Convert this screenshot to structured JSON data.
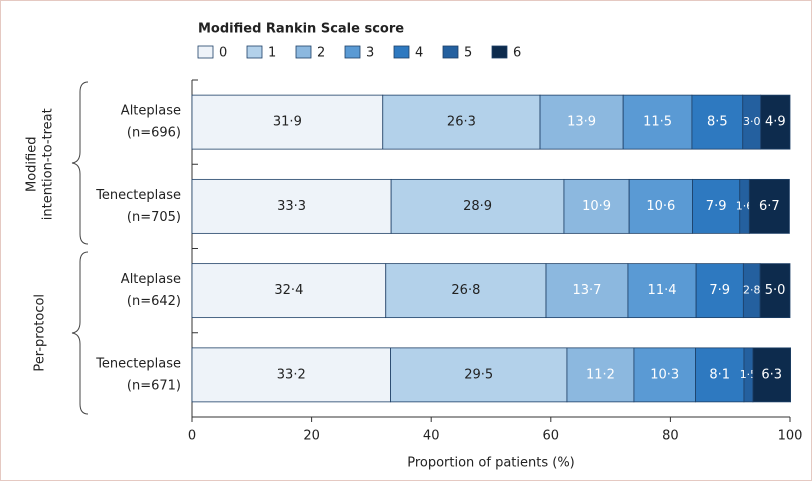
{
  "chart_data": {
    "type": "stacked-bar-horizontal",
    "legend_title": "Modified Rankin Scale score",
    "categories": [
      [
        "Alteplase",
        "(n=696)"
      ],
      [
        "Tenecteplase",
        "(n=705)"
      ],
      [
        "Alteplase",
        "(n=642)"
      ],
      [
        "Tenecteplase",
        "(n=671)"
      ]
    ],
    "groups": [
      [
        "Modified",
        "intention-to-treat"
      ],
      [
        "Per-protocol"
      ]
    ],
    "series": [
      {
        "name": "0",
        "color": "#eef3f9",
        "values": [
          31.9,
          33.3,
          32.4,
          33.2
        ],
        "value_labels": [
          "31·9",
          "33·3",
          "32·4",
          "33·2"
        ]
      },
      {
        "name": "1",
        "color": "#b3d1ea",
        "values": [
          26.3,
          28.9,
          26.8,
          29.5
        ],
        "value_labels": [
          "26·3",
          "28·9",
          "26·8",
          "29·5"
        ]
      },
      {
        "name": "2",
        "color": "#8cb8df",
        "values": [
          13.9,
          10.9,
          13.7,
          11.2
        ],
        "value_labels": [
          "13·9",
          "10·9",
          "13·7",
          "11·2"
        ]
      },
      {
        "name": "3",
        "color": "#5a9ad4",
        "values": [
          11.5,
          10.6,
          11.4,
          10.3
        ],
        "value_labels": [
          "11·5",
          "10·6",
          "11·4",
          "10·3"
        ]
      },
      {
        "name": "4",
        "color": "#2e79c0",
        "values": [
          8.5,
          7.9,
          7.9,
          8.1
        ],
        "value_labels": [
          "8·5",
          "7·9",
          "7·9",
          "8·1"
        ]
      },
      {
        "name": "5",
        "color": "#24609f",
        "values": [
          3.0,
          1.6,
          2.8,
          1.5
        ],
        "value_labels": [
          "3·0",
          "1·6",
          "2·8",
          "1·5"
        ]
      },
      {
        "name": "6",
        "color": "#0d2b4d",
        "values": [
          4.9,
          6.7,
          5.0,
          6.3
        ],
        "value_labels": [
          "4·9",
          "6·7",
          "5·0",
          "6·3"
        ]
      }
    ],
    "x_label": "Proportion of patients (%)",
    "xlim": [
      0,
      100
    ],
    "xticks": [
      0,
      20,
      40,
      60,
      80,
      100
    ]
  }
}
